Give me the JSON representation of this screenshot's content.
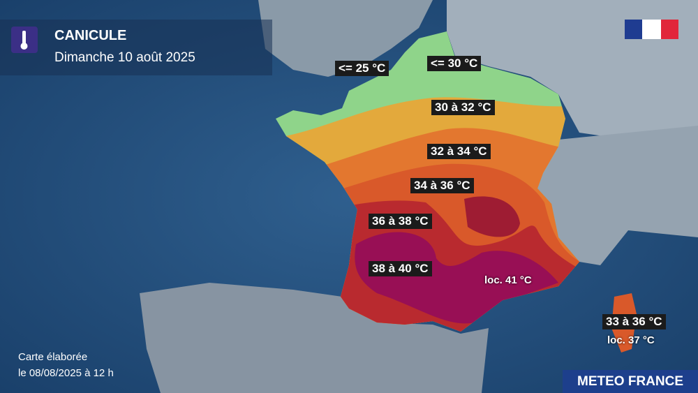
{
  "header": {
    "title": "CANICULE",
    "subtitle": "Dimanche 10 août 2025"
  },
  "labels": [
    "<= 25 °C",
    "<= 30 °C",
    "30 à 32 °C",
    "32 à 34 °C",
    "34 à 36 °C",
    "36 à 38 °C",
    "38 à 40 °C",
    "loc. 41 °C",
    "33 à 36 °C",
    "loc. 37 °C"
  ],
  "footer": {
    "line1": "Carte élaborée",
    "line2": "le 08/08/2025 à 12 h"
  },
  "brand": "METEO FRANCE"
}
